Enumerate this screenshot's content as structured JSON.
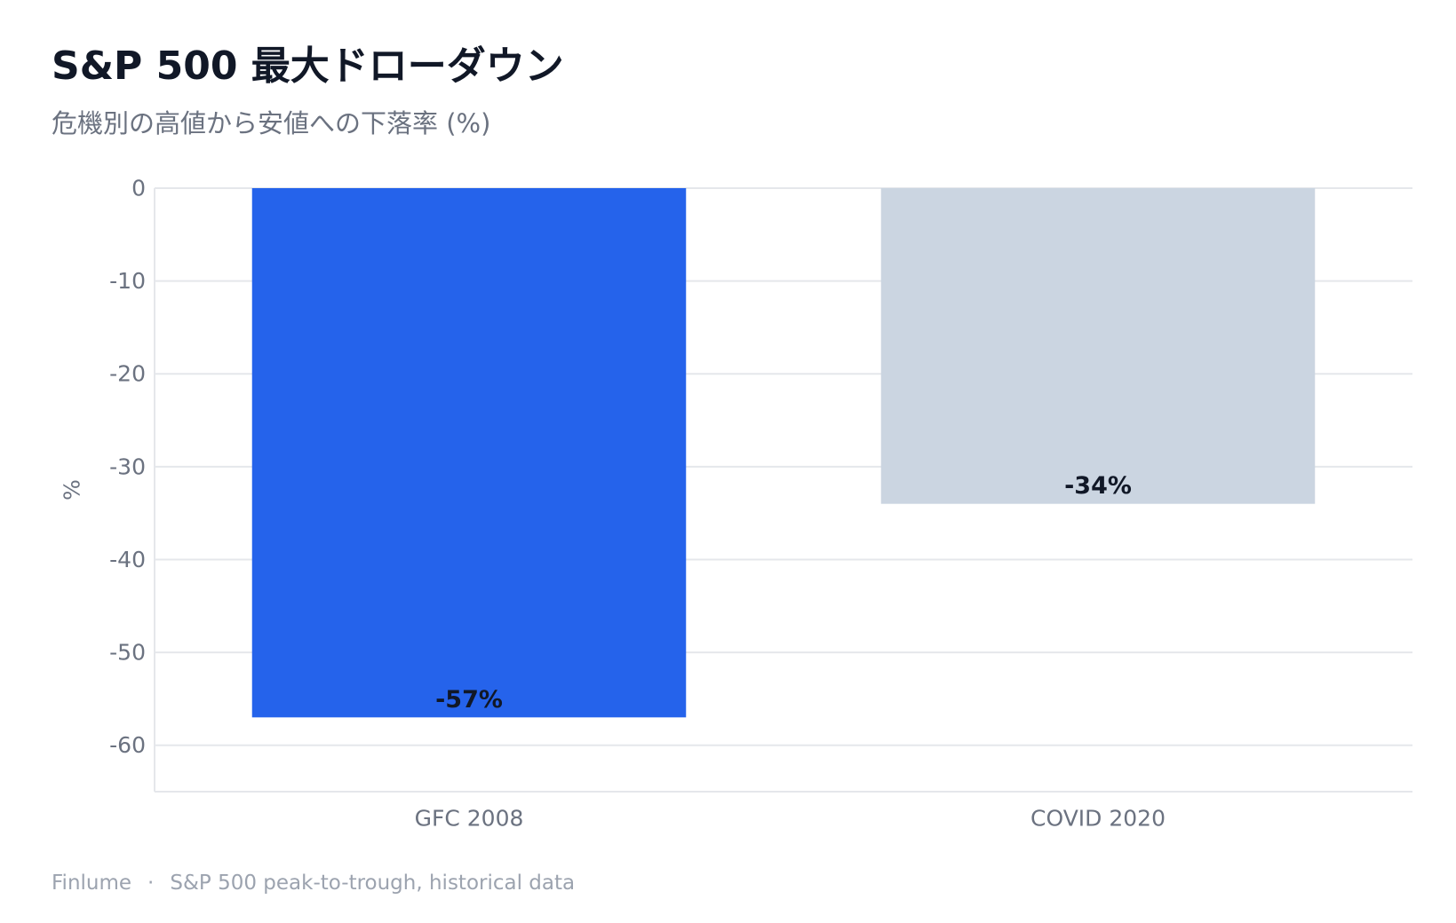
{
  "chart_data": {
    "type": "bar",
    "title": "S&P 500 最大ドローダウン",
    "subtitle": "危機別の高値から安値への下落率 (%)",
    "ylabel": "%",
    "xlabel": "",
    "categories": [
      "GFC 2008",
      "COVID 2020"
    ],
    "values": [
      -57,
      -34
    ],
    "data_labels": [
      "-57%",
      "-34%"
    ],
    "bar_colors": [
      "#2563eb",
      "#cbd5e1"
    ],
    "ylim": [
      -65,
      0
    ],
    "yticks": [
      0,
      -10,
      -20,
      -30,
      -40,
      -50,
      -60
    ],
    "grid": true,
    "legend": "none"
  },
  "footer": {
    "brand": "Finlume",
    "separator": "·",
    "source": "S&P 500 peak-to-trough, historical data"
  }
}
